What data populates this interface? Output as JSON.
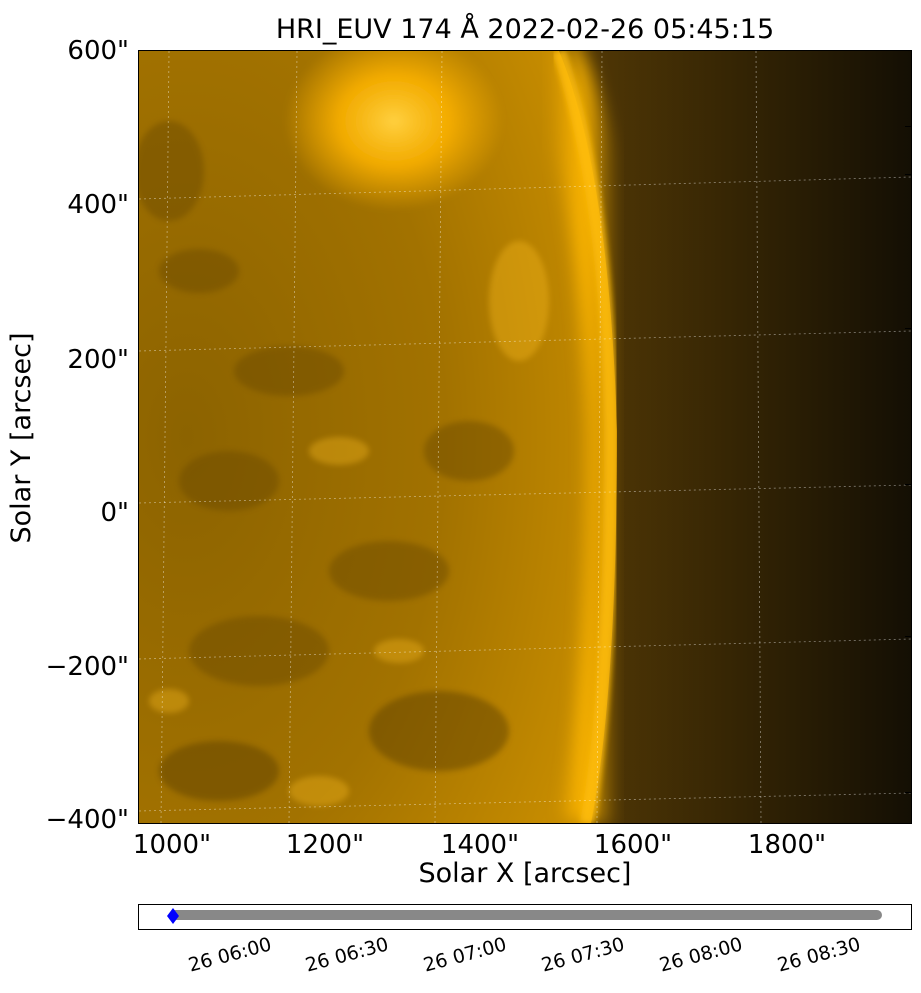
{
  "title": "HRI_EUV 174 Å 2022-02-26 05:45:15",
  "x_axis": {
    "label": "Solar X [arcsec]",
    "ticks": [
      "1000\"",
      "1200\"",
      "1400\"",
      "1600\"",
      "1800\""
    ]
  },
  "y_axis": {
    "label": "Solar Y [arcsec]",
    "ticks": [
      "600\"",
      "400\"",
      "200\"",
      "0\"",
      "−200\"",
      "−400\""
    ]
  },
  "timeline": {
    "ticks": [
      "26 06:00",
      "26 06:30",
      "26 07:00",
      "26 07:30",
      "26 08:00",
      "26 08:30"
    ],
    "current_marker_color": "#0000ff",
    "range_color": "#888888"
  },
  "colors": {
    "sun_bright": "#ffb400",
    "sun_mid": "#b87d00",
    "sun_dark": "#6b4a00",
    "space": "#140f04"
  }
}
